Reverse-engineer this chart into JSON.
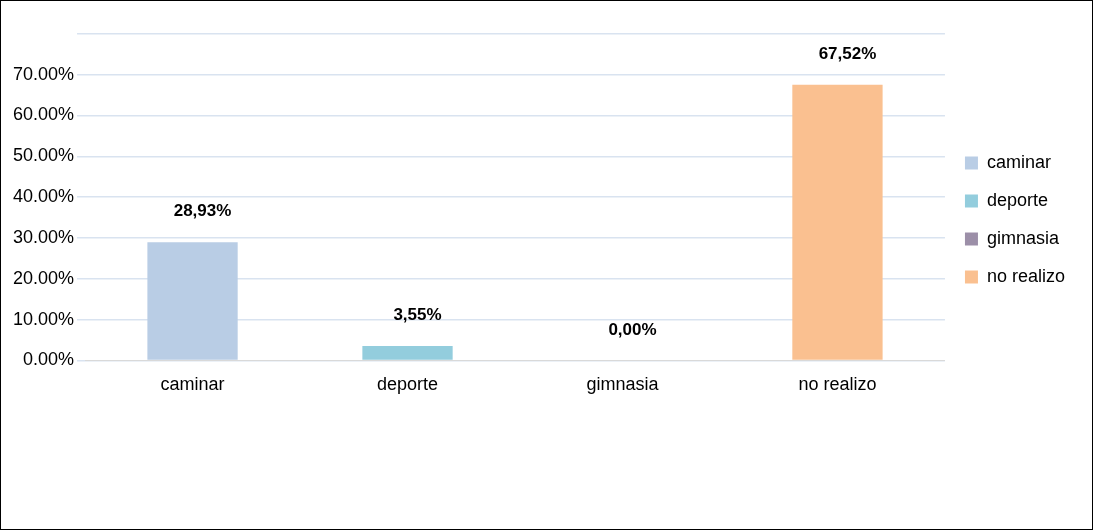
{
  "chart_data": {
    "type": "bar",
    "categories": [
      "caminar",
      "deporte",
      "gimnasia",
      "no realizo"
    ],
    "series": [
      {
        "name": "caminar",
        "color": "#b9cde5",
        "values": [
          28.93,
          null,
          null,
          null
        ],
        "value_labels": [
          "28,93%",
          null,
          null,
          null
        ]
      },
      {
        "name": "deporte",
        "color": "#93cddd",
        "values": [
          null,
          3.55,
          null,
          null
        ],
        "value_labels": [
          null,
          "3,55%",
          null,
          null
        ]
      },
      {
        "name": "gimnasia",
        "color": "#9c8fa8",
        "values": [
          null,
          null,
          0,
          null
        ],
        "value_labels": [
          null,
          null,
          "0,00%",
          null
        ]
      },
      {
        "name": "no realizo",
        "color": "#fac090",
        "values": [
          null,
          null,
          null,
          67.52
        ],
        "value_labels": [
          null,
          null,
          null,
          "67,52%"
        ]
      }
    ],
    "ylim": [
      0,
      80
    ],
    "yticks": [
      {
        "value": 0,
        "label": "0.00%"
      },
      {
        "value": 10,
        "label": "10.00%"
      },
      {
        "value": 20,
        "label": "20.00%"
      },
      {
        "value": 30,
        "label": "30.00%"
      },
      {
        "value": 40,
        "label": "40.00%"
      },
      {
        "value": 50,
        "label": "50.00%"
      },
      {
        "value": 60,
        "label": "60.00%"
      },
      {
        "value": 70,
        "label": "70.00%"
      },
      {
        "value": 80,
        "label": null
      }
    ],
    "grid": "y",
    "legend": "right"
  }
}
